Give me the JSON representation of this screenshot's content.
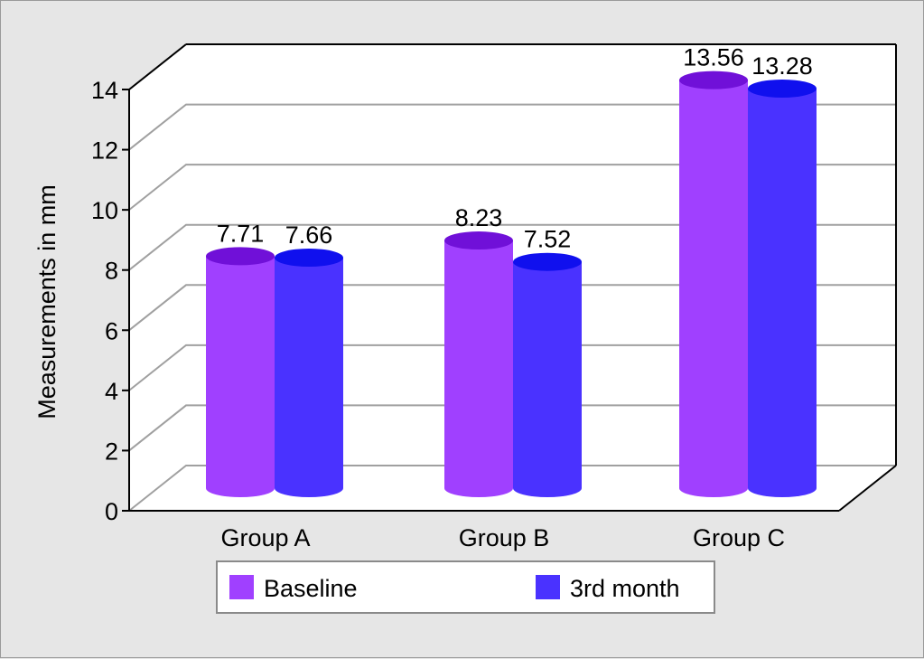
{
  "chart_data": {
    "type": "bar",
    "style": "3d-cylinder",
    "title": "",
    "xlabel": "",
    "ylabel": "Measurements in mm",
    "ylim": [
      0,
      14
    ],
    "yticks": [
      0,
      2,
      4,
      6,
      8,
      10,
      12,
      14
    ],
    "categories": [
      "Group A",
      "Group B",
      "Group C"
    ],
    "series": [
      {
        "name": "Baseline",
        "values": [
          7.71,
          8.23,
          13.56
        ],
        "color": "#a040ff",
        "top_color": "#7010d8"
      },
      {
        "name": "3rd month",
        "values": [
          7.66,
          7.52,
          13.28
        ],
        "color": "#4a32ff",
        "top_color": "#1010ee"
      }
    ],
    "data_labels": [
      [
        "7.71",
        "8.23",
        "13.56"
      ],
      [
        "7.66",
        "7.52",
        "13.28"
      ]
    ],
    "grid": true,
    "legend_position": "bottom"
  }
}
